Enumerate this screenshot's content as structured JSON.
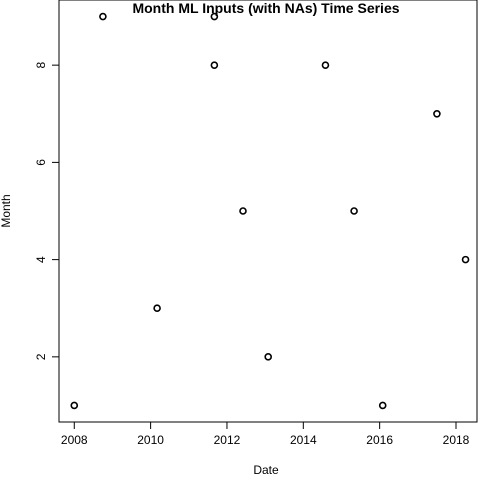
{
  "chart_data": {
    "type": "scatter",
    "title": "Month ML Inputs (with NAs) Time Series",
    "xlabel": "Date",
    "ylabel": "Month",
    "x_ticks": [
      2008,
      2010,
      2012,
      2014,
      2016,
      2018
    ],
    "y_ticks": [
      2,
      4,
      6,
      8
    ],
    "xlim": [
      2007.6,
      2018.55
    ],
    "ylim": [
      0.66,
      9.34
    ],
    "grid": false,
    "points": [
      {
        "x": 2008.0,
        "y": 1
      },
      {
        "x": 2008.75,
        "y": 9
      },
      {
        "x": 2010.17,
        "y": 3
      },
      {
        "x": 2011.67,
        "y": 9
      },
      {
        "x": 2011.67,
        "y": 8
      },
      {
        "x": 2012.42,
        "y": 5
      },
      {
        "x": 2013.08,
        "y": 2
      },
      {
        "x": 2014.58,
        "y": 8
      },
      {
        "x": 2015.33,
        "y": 5
      },
      {
        "x": 2016.08,
        "y": 1
      },
      {
        "x": 2017.5,
        "y": 7
      },
      {
        "x": 2018.25,
        "y": 4
      }
    ]
  }
}
